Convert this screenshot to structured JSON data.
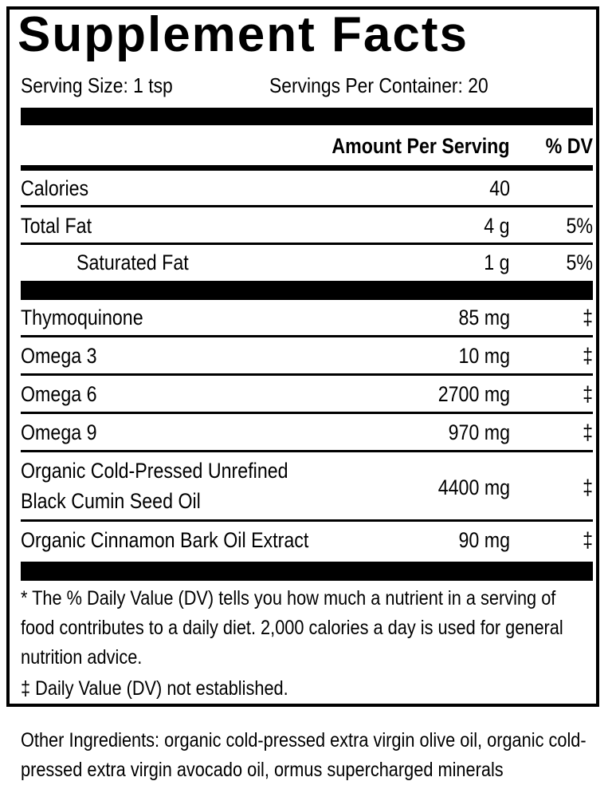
{
  "title": "Supplement Facts",
  "serving_size": "Serving Size: 1 tsp",
  "servings_per_container": "Servings Per Container: 20",
  "header": {
    "amount": "Amount Per Serving",
    "dv": "% DV"
  },
  "rows": [
    {
      "name": "Calories",
      "amount": "40",
      "dv": ""
    },
    {
      "name": "Total Fat",
      "amount": "4 g",
      "dv": "5%"
    },
    {
      "name": "Saturated Fat",
      "amount": "1 g",
      "dv": "5%"
    },
    {
      "name": "Thymoquinone",
      "amount": "85 mg",
      "dv": "‡"
    },
    {
      "name": "Omega 3",
      "amount": "10 mg",
      "dv": "‡"
    },
    {
      "name": "Omega 6",
      "amount": "2700 mg",
      "dv": "‡"
    },
    {
      "name": "Omega 9",
      "amount": "970 mg",
      "dv": "‡"
    },
    {
      "name_line1": "Organic Cold-Pressed Unrefined",
      "name_line2": "Black Cumin Seed Oil",
      "amount": "4400 mg",
      "dv": "‡"
    },
    {
      "name": "Organic Cinnamon Bark Oil Extract",
      "amount": "90 mg",
      "dv": "‡"
    }
  ],
  "footnote_dv": "* The % Daily Value (DV) tells you how much a nutrient in a serving of food contributes to a daily diet. 2,000 calories a day is used for general nutrition advice.",
  "footnote_not_established": "‡ Daily Value (DV) not established.",
  "other_ingredients": "Other Ingredients: organic cold-pressed extra virgin olive oil, organic cold-pressed extra virgin avocado oil, ormus supercharged minerals"
}
